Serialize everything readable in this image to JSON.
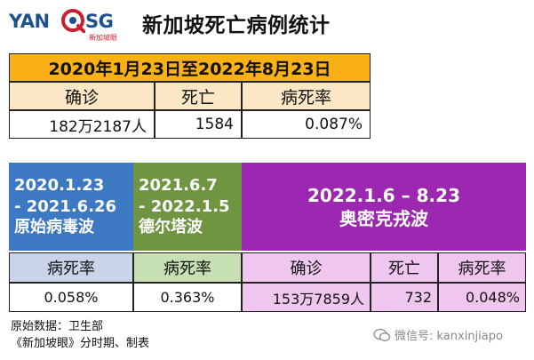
{
  "logo": {
    "left": "YAN",
    "right": "SG",
    "sub": "新加坡眼"
  },
  "title": "新加坡死亡病例统计",
  "overall": {
    "period": "2020年1月23日至2022年8月23日",
    "labels": [
      "确诊",
      "死亡",
      "病死率"
    ],
    "values": [
      "182万2187人",
      "1584",
      "0.087%"
    ]
  },
  "phases": [
    {
      "line1": "2020.1.23",
      "line2": "- 2021.6.26",
      "line3": "原始病毒波",
      "label": "病死率",
      "value": "0.058%",
      "color": "#3d78c3"
    },
    {
      "line1": "2021.6.7",
      "line2": "- 2022.1.5",
      "line3": "德尔塔波",
      "label": "病死率",
      "value": "0.363%",
      "color": "#6f9442"
    },
    {
      "line1": "2022.1.6 – 8.23",
      "line2": "奥密克戎波",
      "labels": [
        "确诊",
        "死亡",
        "病死率"
      ],
      "values": [
        "153万7859人",
        "732",
        "0.048%"
      ],
      "color": "#9c27b0"
    }
  ],
  "source": [
    "原始数据：卫生部",
    "《新加坡眼》分时期、制表"
  ],
  "wechat": "微信号: kanxinjiapo",
  "colors": {
    "orange": "#f9b116",
    "peach": "#fbe6c6",
    "blue": "#3d78c3",
    "green": "#6f9442",
    "purple": "#9c27b0"
  }
}
